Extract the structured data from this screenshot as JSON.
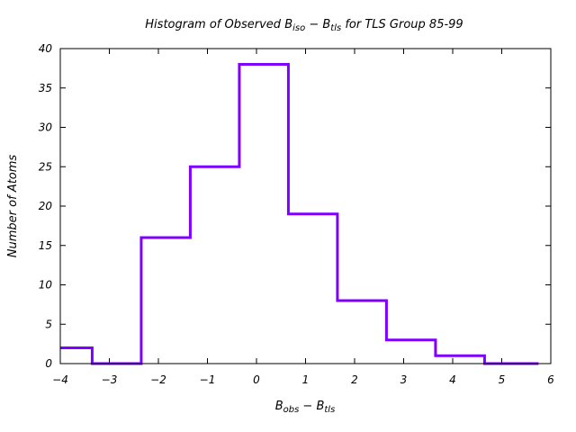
{
  "chart_data": {
    "type": "bar",
    "title": {
      "pre": "Histogram of Observed B",
      "sub1": "iso",
      "mid": " − B",
      "sub2": "tls",
      "post": "  for TLS Group 85-99"
    },
    "xlabel": {
      "pre": "B",
      "sub1": "obs",
      "mid": " − B",
      "sub2": "tls"
    },
    "ylabel": "Number of Atoms",
    "xlim": [
      -4,
      6
    ],
    "ylim": [
      0,
      40
    ],
    "xticks": [
      -4,
      -3,
      -2,
      -1,
      0,
      1,
      2,
      3,
      4,
      5,
      6
    ],
    "xtick_labels": [
      "−4",
      "−3",
      "−2",
      "−1",
      "0",
      "1",
      "2",
      "3",
      "4",
      "5",
      "6"
    ],
    "yticks": [
      0,
      5,
      10,
      15,
      20,
      25,
      30,
      35,
      40
    ],
    "ytick_labels": [
      "0",
      "5",
      "10",
      "15",
      "20",
      "25",
      "30",
      "35",
      "40"
    ],
    "bin_edges": [
      -4.0,
      -3.35,
      -2.35,
      -1.35,
      -0.35,
      0.65,
      1.65,
      2.65,
      3.65,
      4.65,
      5.75
    ],
    "values": [
      2,
      0,
      16,
      25,
      38,
      19,
      8,
      3,
      1,
      0
    ],
    "line_color": "#7f00ff",
    "grid": false
  }
}
